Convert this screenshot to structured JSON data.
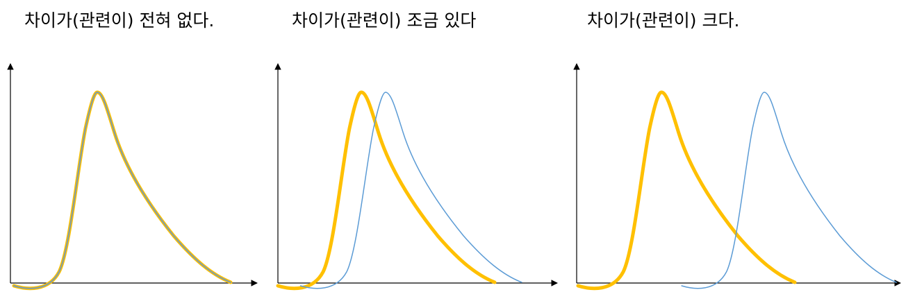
{
  "panels": [
    {
      "title": "차이가(관련이) 전혀 없다."
    },
    {
      "title": "차이가(관련이) 조금 있다"
    },
    {
      "title": "차이가(관련이) 크다."
    }
  ]
}
